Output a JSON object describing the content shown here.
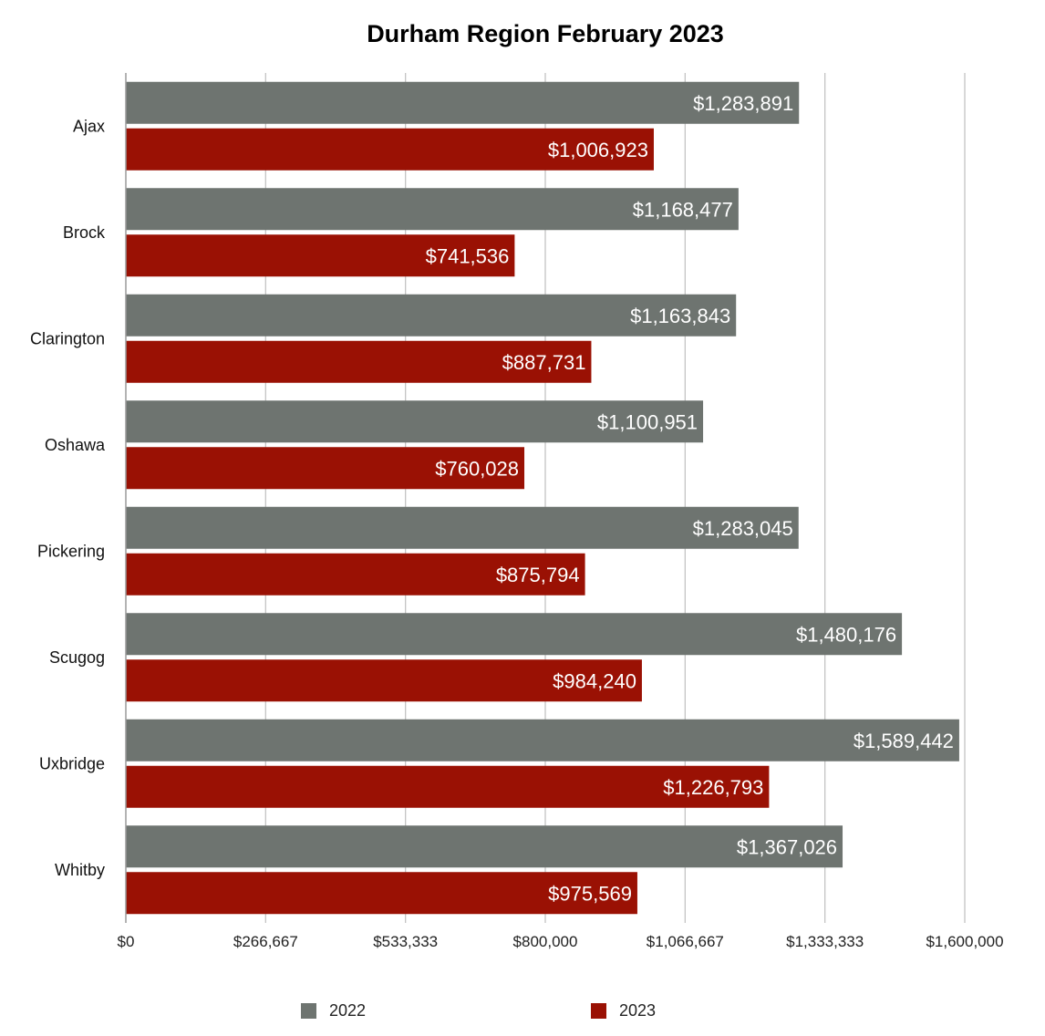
{
  "chart_data": {
    "type": "bar",
    "orientation": "horizontal",
    "title": "Durham Region February 2023",
    "xlabel": "",
    "ylabel": "",
    "categories": [
      "Ajax",
      "Brock",
      "Clarington",
      "Oshawa",
      "Pickering",
      "Scugog",
      "Uxbridge",
      "Whitby"
    ],
    "series": [
      {
        "name": "2022",
        "color": "#6e7470",
        "values": [
          1283891,
          1168477,
          1163843,
          1100951,
          1283045,
          1480176,
          1589442,
          1367026
        ],
        "labels": [
          "$1,283,891",
          "$1,168,477",
          "$1,163,843",
          "$1,100,951",
          "$1,283,045",
          "$1,480,176",
          "$1,589,442",
          "$1,367,026"
        ]
      },
      {
        "name": "2023",
        "color": "#9a1104",
        "values": [
          1006923,
          741536,
          887731,
          760028,
          875794,
          984240,
          1226793,
          975569
        ],
        "labels": [
          "$1,006,923",
          "$741,536",
          "$887,731",
          "$760,028",
          "$875,794",
          "$984,240",
          "$1,226,793",
          "$975,569"
        ]
      }
    ],
    "xlim": [
      0,
      1600000
    ],
    "x_ticks": [
      0,
      266667,
      533333,
      800000,
      1066667,
      1333333,
      1600000
    ],
    "x_tick_labels": [
      "$0",
      "$266,667",
      "$533,333",
      "$800,000",
      "$1,066,667",
      "$1,333,333",
      "$1,600,000"
    ],
    "grid": true,
    "legend_position": "bottom"
  }
}
